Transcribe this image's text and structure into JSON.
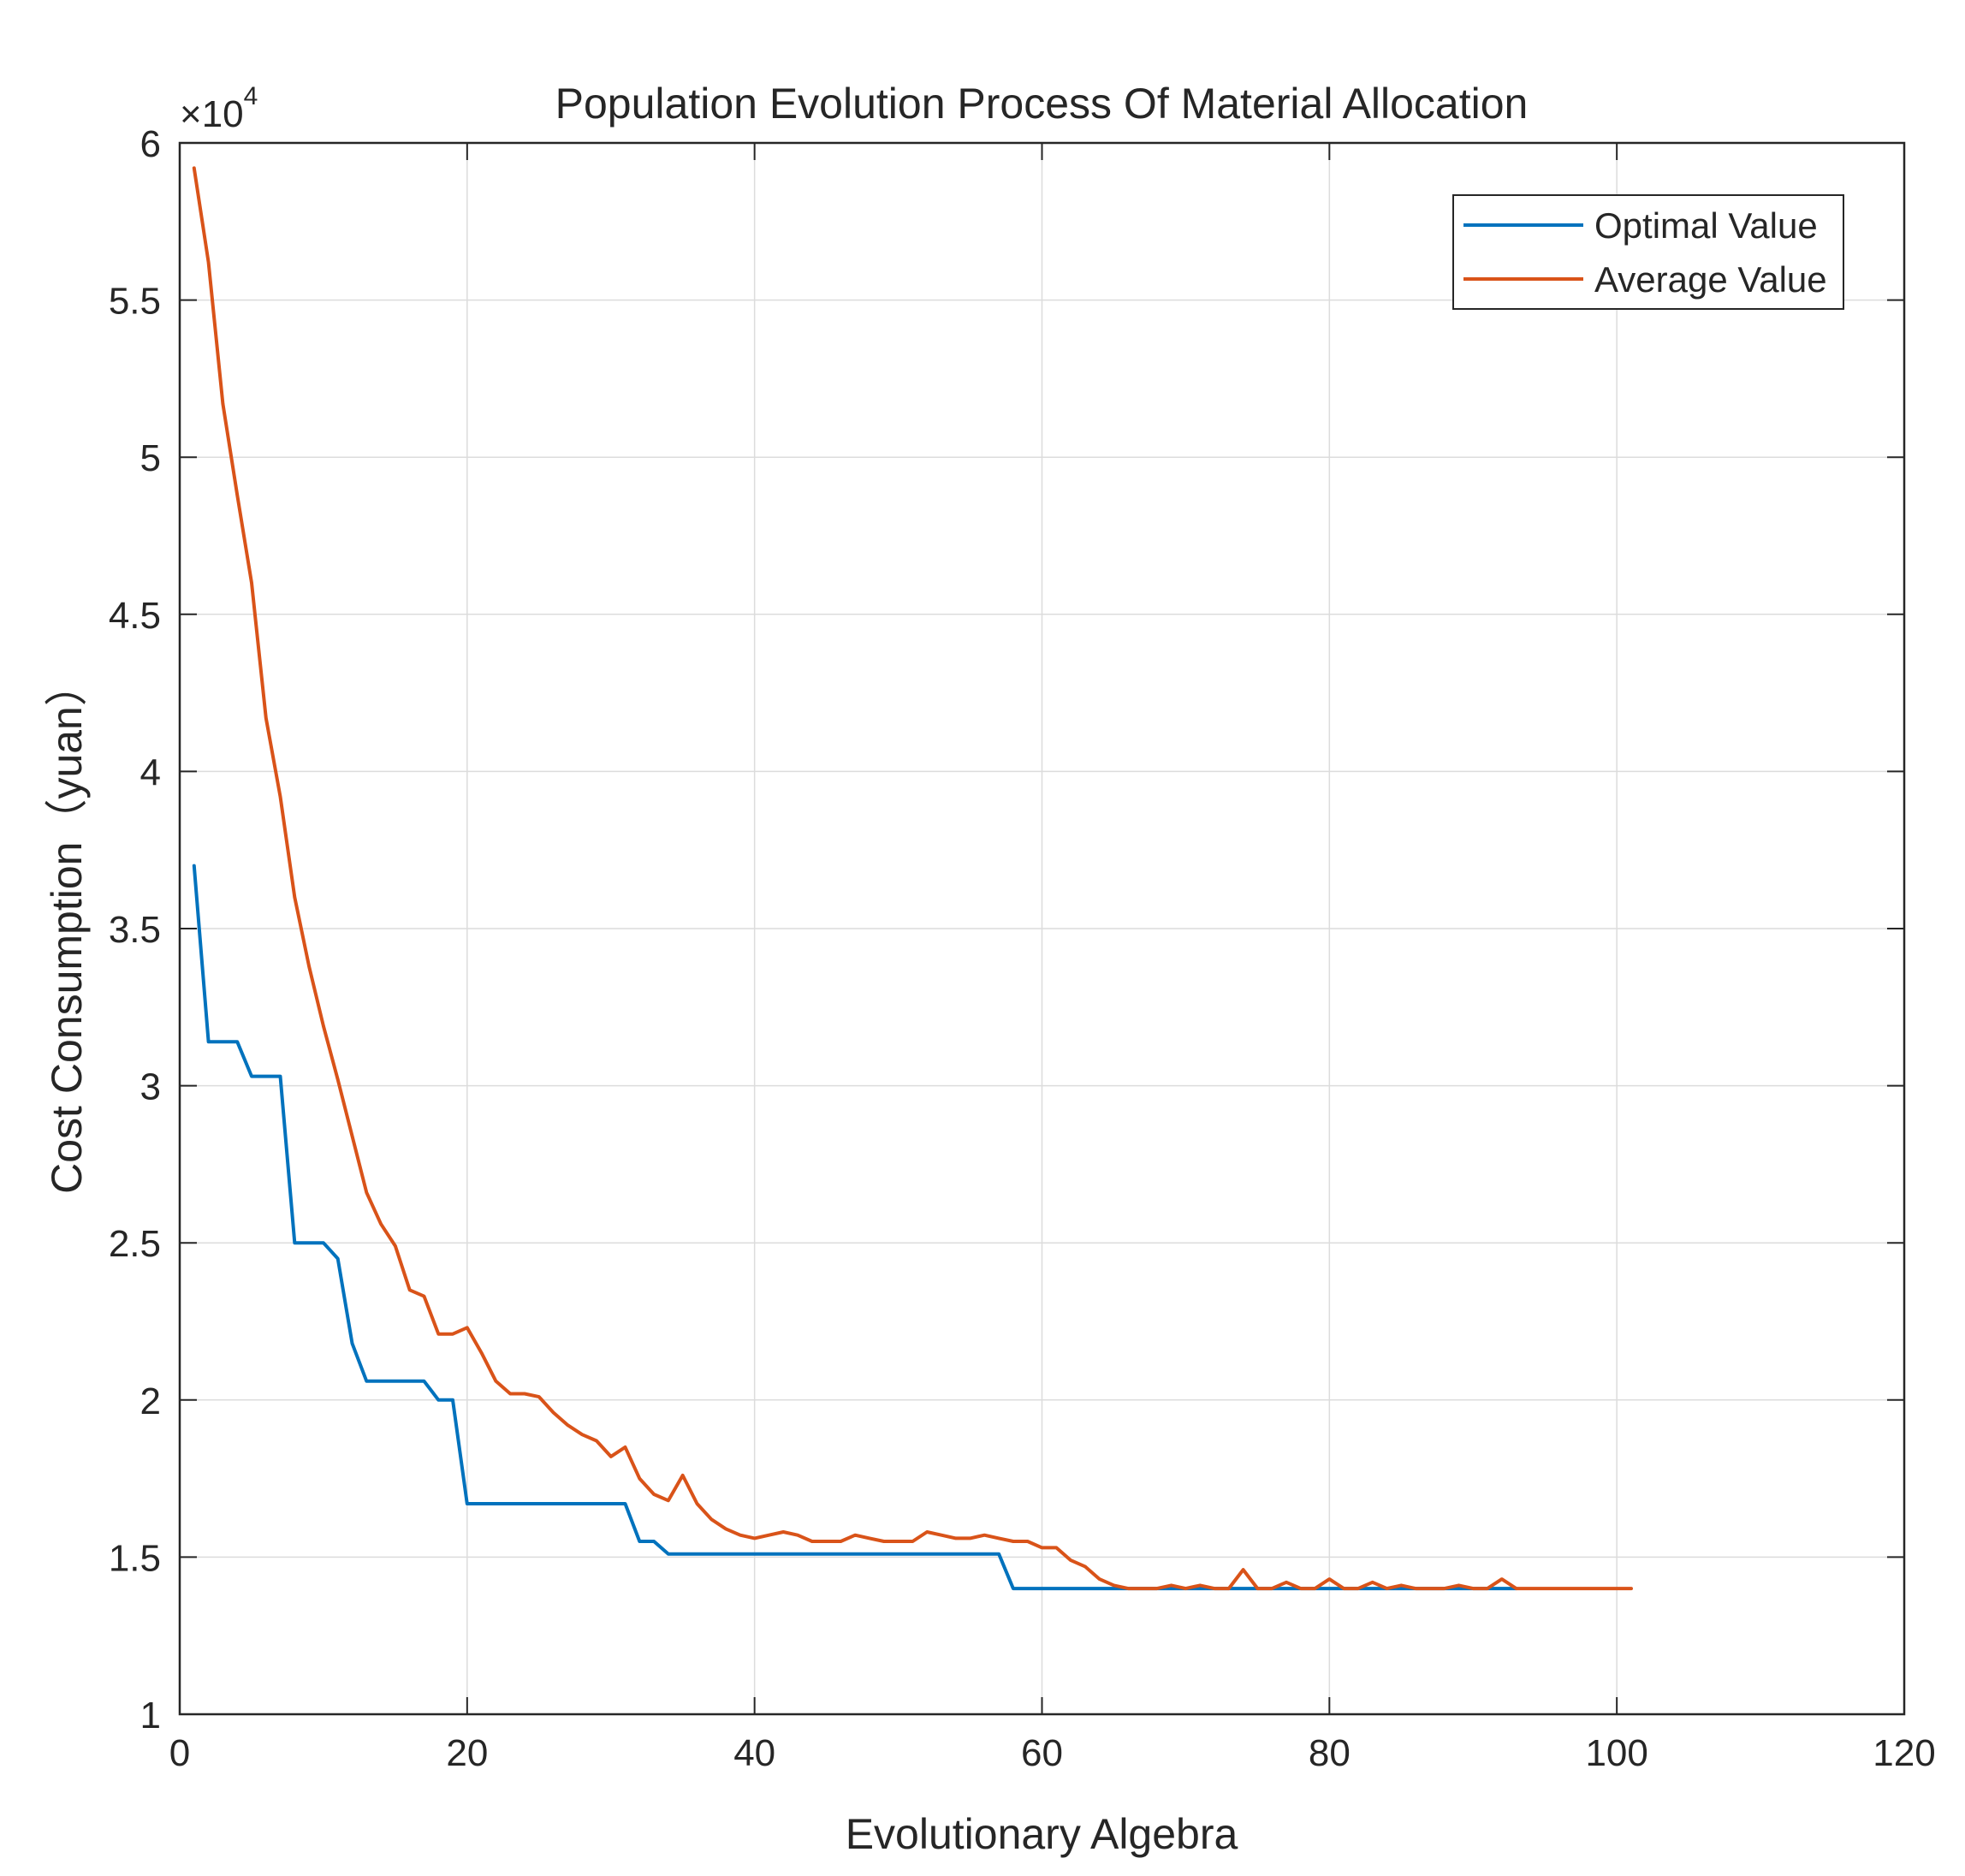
{
  "chart_data": {
    "type": "line",
    "title": "Population Evolution Process Of Material Allocation",
    "xlabel": "Evolutionary Algebra",
    "ylabel": "Cost Consumption（yuan）",
    "y_exponent_label": "×10",
    "y_exponent_power": "4",
    "xlim": [
      0,
      120
    ],
    "ylim": [
      1,
      6
    ],
    "x_ticks": [
      0,
      20,
      40,
      60,
      80,
      100,
      120
    ],
    "x_tick_labels": [
      "0",
      "20",
      "40",
      "60",
      "80",
      "100",
      "120"
    ],
    "y_ticks": [
      1,
      1.5,
      2,
      2.5,
      3,
      3.5,
      4,
      4.5,
      5,
      5.5,
      6
    ],
    "y_tick_labels": [
      "1",
      "1.5",
      "2",
      "2.5",
      "3",
      "3.5",
      "4",
      "4.5",
      "5",
      "5.5",
      "6"
    ],
    "grid": true,
    "legend_position": "top-right",
    "series": [
      {
        "name": "Optimal Value",
        "color": "#0072BD",
        "points": [
          [
            1,
            3.7
          ],
          [
            2,
            3.14
          ],
          [
            3,
            3.14
          ],
          [
            4,
            3.14
          ],
          [
            5,
            3.03
          ],
          [
            6,
            3.03
          ],
          [
            7,
            3.03
          ],
          [
            8,
            2.5
          ],
          [
            9,
            2.5
          ],
          [
            10,
            2.5
          ],
          [
            11,
            2.45
          ],
          [
            12,
            2.18
          ],
          [
            13,
            2.06
          ],
          [
            14,
            2.06
          ],
          [
            15,
            2.06
          ],
          [
            16,
            2.06
          ],
          [
            17,
            2.06
          ],
          [
            18,
            2.0
          ],
          [
            19,
            2.0
          ],
          [
            20,
            1.67
          ],
          [
            21,
            1.67
          ],
          [
            22,
            1.67
          ],
          [
            23,
            1.67
          ],
          [
            24,
            1.67
          ],
          [
            25,
            1.67
          ],
          [
            26,
            1.67
          ],
          [
            27,
            1.67
          ],
          [
            28,
            1.67
          ],
          [
            29,
            1.67
          ],
          [
            30,
            1.67
          ],
          [
            31,
            1.67
          ],
          [
            32,
            1.55
          ],
          [
            33,
            1.55
          ],
          [
            34,
            1.51
          ],
          [
            35,
            1.51
          ],
          [
            36,
            1.51
          ],
          [
            37,
            1.51
          ],
          [
            38,
            1.51
          ],
          [
            39,
            1.51
          ],
          [
            40,
            1.51
          ],
          [
            41,
            1.51
          ],
          [
            42,
            1.51
          ],
          [
            43,
            1.51
          ],
          [
            44,
            1.51
          ],
          [
            45,
            1.51
          ],
          [
            46,
            1.51
          ],
          [
            47,
            1.51
          ],
          [
            48,
            1.51
          ],
          [
            49,
            1.51
          ],
          [
            50,
            1.51
          ],
          [
            51,
            1.51
          ],
          [
            52,
            1.51
          ],
          [
            53,
            1.51
          ],
          [
            54,
            1.51
          ],
          [
            55,
            1.51
          ],
          [
            56,
            1.51
          ],
          [
            57,
            1.51
          ],
          [
            58,
            1.4
          ],
          [
            59,
            1.4
          ],
          [
            60,
            1.4
          ],
          [
            61,
            1.4
          ],
          [
            62,
            1.4
          ],
          [
            63,
            1.4
          ],
          [
            64,
            1.4
          ],
          [
            65,
            1.4
          ],
          [
            66,
            1.4
          ],
          [
            67,
            1.4
          ],
          [
            68,
            1.4
          ],
          [
            69,
            1.4
          ],
          [
            70,
            1.4
          ],
          [
            71,
            1.4
          ],
          [
            72,
            1.4
          ],
          [
            73,
            1.4
          ],
          [
            74,
            1.4
          ],
          [
            75,
            1.4
          ],
          [
            76,
            1.4
          ],
          [
            77,
            1.4
          ],
          [
            78,
            1.4
          ],
          [
            79,
            1.4
          ],
          [
            80,
            1.4
          ],
          [
            81,
            1.4
          ],
          [
            82,
            1.4
          ],
          [
            83,
            1.4
          ],
          [
            84,
            1.4
          ],
          [
            85,
            1.4
          ],
          [
            86,
            1.4
          ],
          [
            87,
            1.4
          ],
          [
            88,
            1.4
          ],
          [
            89,
            1.4
          ],
          [
            90,
            1.4
          ],
          [
            91,
            1.4
          ],
          [
            92,
            1.4
          ],
          [
            93,
            1.4
          ]
        ]
      },
      {
        "name": "Average Value",
        "color": "#D95319",
        "points": [
          [
            1,
            5.92
          ],
          [
            2,
            5.62
          ],
          [
            3,
            5.17
          ],
          [
            4,
            4.88
          ],
          [
            5,
            4.6
          ],
          [
            6,
            4.17
          ],
          [
            7,
            3.92
          ],
          [
            8,
            3.6
          ],
          [
            9,
            3.38
          ],
          [
            10,
            3.19
          ],
          [
            11,
            3.02
          ],
          [
            12,
            2.84
          ],
          [
            13,
            2.66
          ],
          [
            14,
            2.56
          ],
          [
            15,
            2.49
          ],
          [
            16,
            2.35
          ],
          [
            17,
            2.33
          ],
          [
            18,
            2.21
          ],
          [
            19,
            2.21
          ],
          [
            20,
            2.23
          ],
          [
            21,
            2.15
          ],
          [
            22,
            2.06
          ],
          [
            23,
            2.02
          ],
          [
            24,
            2.02
          ],
          [
            25,
            2.01
          ],
          [
            26,
            1.96
          ],
          [
            27,
            1.92
          ],
          [
            28,
            1.89
          ],
          [
            29,
            1.87
          ],
          [
            30,
            1.82
          ],
          [
            31,
            1.85
          ],
          [
            32,
            1.75
          ],
          [
            33,
            1.7
          ],
          [
            34,
            1.68
          ],
          [
            35,
            1.76
          ],
          [
            36,
            1.67
          ],
          [
            37,
            1.62
          ],
          [
            38,
            1.59
          ],
          [
            39,
            1.57
          ],
          [
            40,
            1.56
          ],
          [
            41,
            1.57
          ],
          [
            42,
            1.58
          ],
          [
            43,
            1.57
          ],
          [
            44,
            1.55
          ],
          [
            45,
            1.55
          ],
          [
            46,
            1.55
          ],
          [
            47,
            1.57
          ],
          [
            48,
            1.56
          ],
          [
            49,
            1.55
          ],
          [
            50,
            1.55
          ],
          [
            51,
            1.55
          ],
          [
            52,
            1.58
          ],
          [
            53,
            1.57
          ],
          [
            54,
            1.56
          ],
          [
            55,
            1.56
          ],
          [
            56,
            1.57
          ],
          [
            57,
            1.56
          ],
          [
            58,
            1.55
          ],
          [
            59,
            1.55
          ],
          [
            60,
            1.53
          ],
          [
            61,
            1.53
          ],
          [
            62,
            1.49
          ],
          [
            63,
            1.47
          ],
          [
            64,
            1.43
          ],
          [
            65,
            1.41
          ],
          [
            66,
            1.4
          ],
          [
            67,
            1.4
          ],
          [
            68,
            1.4
          ],
          [
            69,
            1.41
          ],
          [
            70,
            1.4
          ],
          [
            71,
            1.41
          ],
          [
            72,
            1.4
          ],
          [
            73,
            1.4
          ],
          [
            74,
            1.46
          ],
          [
            75,
            1.4
          ],
          [
            76,
            1.4
          ],
          [
            77,
            1.42
          ],
          [
            78,
            1.4
          ],
          [
            79,
            1.4
          ],
          [
            80,
            1.43
          ],
          [
            81,
            1.4
          ],
          [
            82,
            1.4
          ],
          [
            83,
            1.42
          ],
          [
            84,
            1.4
          ],
          [
            85,
            1.41
          ],
          [
            86,
            1.4
          ],
          [
            87,
            1.4
          ],
          [
            88,
            1.4
          ],
          [
            89,
            1.41
          ],
          [
            90,
            1.4
          ],
          [
            91,
            1.4
          ],
          [
            92,
            1.43
          ],
          [
            93,
            1.4
          ],
          [
            94,
            1.4
          ],
          [
            95,
            1.4
          ],
          [
            96,
            1.4
          ],
          [
            97,
            1.4
          ],
          [
            98,
            1.4
          ],
          [
            99,
            1.4
          ],
          [
            100,
            1.4
          ],
          [
            101,
            1.4
          ]
        ]
      }
    ]
  }
}
